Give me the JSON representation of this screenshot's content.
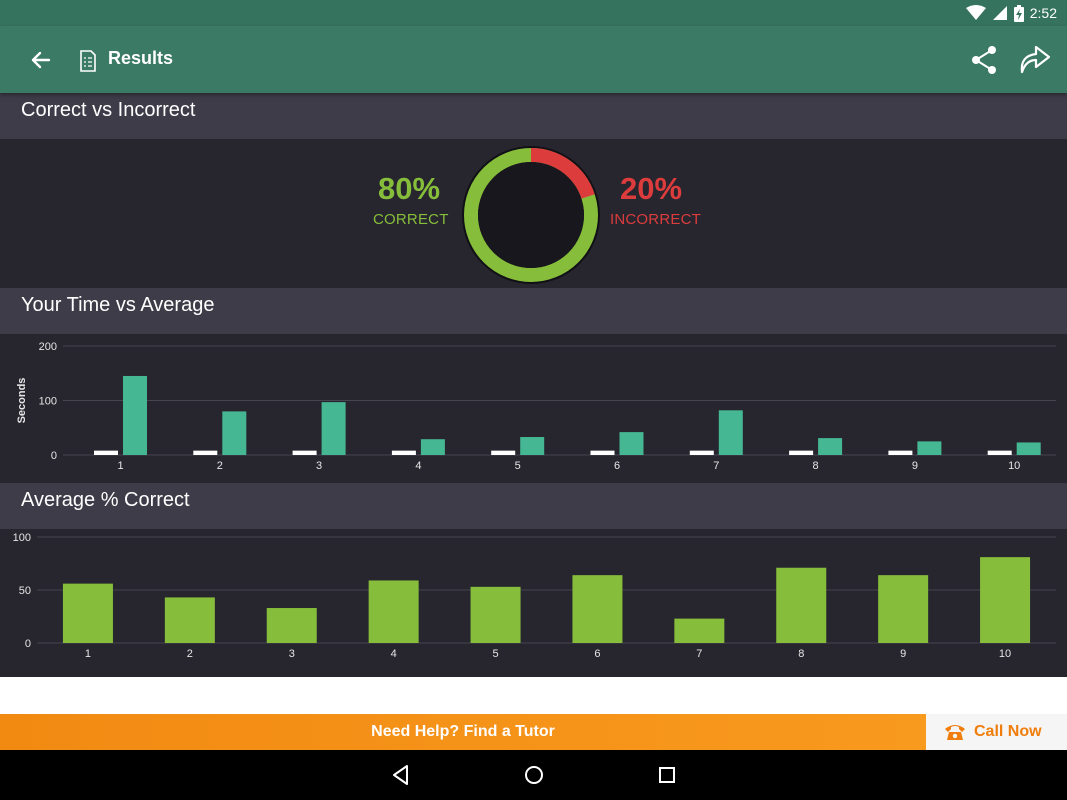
{
  "status_bar": {
    "time": "2:52"
  },
  "app_bar": {
    "title": "Results"
  },
  "sections": {
    "correct_vs_incorrect": "Correct vs Incorrect",
    "time_vs_average": "Your Time vs Average",
    "average_correct": "Average % Correct"
  },
  "score": {
    "correct_pct": "80%",
    "correct_label": "CORRECT",
    "incorrect_pct": "20%",
    "incorrect_label": "INCORRECT",
    "correct_fraction": 0.8
  },
  "colors": {
    "correct": "#86bd3a",
    "incorrect": "#dc3c3c",
    "time_bar": "#45b792",
    "avg_bar": "#ffffff"
  },
  "chart_data": [
    {
      "type": "bar",
      "categories": [
        "1",
        "2",
        "3",
        "4",
        "5",
        "6",
        "7",
        "8",
        "9",
        "10"
      ],
      "series": [
        {
          "values": [
            8,
            8,
            8,
            8,
            8,
            8,
            8,
            8,
            8,
            8
          ]
        },
        {
          "values": [
            145,
            80,
            97,
            29,
            33,
            42,
            82,
            31,
            25,
            23
          ]
        }
      ],
      "ylabel": "Seconds",
      "ylim": [
        0,
        200
      ],
      "yticks": [
        "0",
        "100",
        "200"
      ],
      "grid": true
    },
    {
      "type": "bar",
      "categories": [
        "1",
        "2",
        "3",
        "4",
        "5",
        "6",
        "7",
        "8",
        "9",
        "10"
      ],
      "values": [
        56,
        43,
        33,
        59,
        53,
        64,
        23,
        71,
        64,
        81
      ],
      "ylim": [
        0,
        100
      ],
      "yticks": [
        "0",
        "50",
        "100"
      ],
      "grid": true
    }
  ],
  "footer": {
    "tutor_text": "Need Help? Find a Tutor",
    "call_label": "Call Now"
  },
  "icons": {
    "back": "arrow-back-icon",
    "doc": "document-icon",
    "share": "share-icon",
    "redo": "redo-icon",
    "phone": "phone-icon"
  }
}
